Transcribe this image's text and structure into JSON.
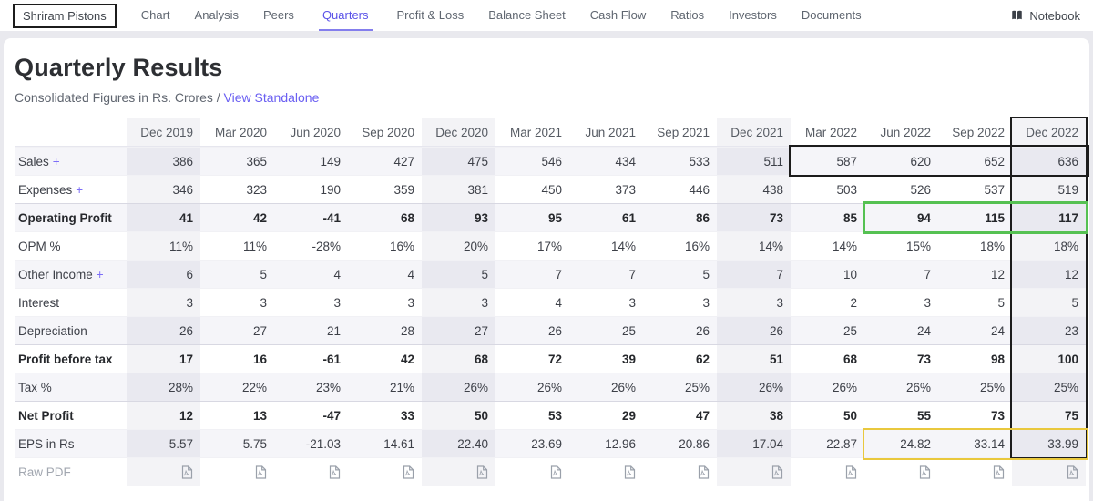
{
  "nav": {
    "company": "Shriram Pistons",
    "items": [
      "Chart",
      "Analysis",
      "Peers",
      "Quarters",
      "Profit & Loss",
      "Balance Sheet",
      "Cash Flow",
      "Ratios",
      "Investors",
      "Documents"
    ],
    "active": "Quarters",
    "notebook_label": "Notebook"
  },
  "header": {
    "title": "Quarterly Results",
    "subtitle": "Consolidated Figures in Rs. Crores /",
    "standalone_link": "View Standalone"
  },
  "table": {
    "columns": [
      "Dec 2019",
      "Mar 2020",
      "Jun 2020",
      "Sep 2020",
      "Dec 2020",
      "Mar 2021",
      "Jun 2021",
      "Sep 2021",
      "Dec 2021",
      "Mar 2022",
      "Jun 2022",
      "Sep 2022",
      "Dec 2022"
    ],
    "rows": [
      {
        "label": "Sales",
        "suffix": "+",
        "bold": false,
        "values": [
          "386",
          "365",
          "149",
          "427",
          "475",
          "546",
          "434",
          "533",
          "511",
          "587",
          "620",
          "652",
          "636"
        ]
      },
      {
        "label": "Expenses",
        "suffix": "+",
        "bold": false,
        "values": [
          "346",
          "323",
          "190",
          "359",
          "381",
          "450",
          "373",
          "446",
          "438",
          "503",
          "526",
          "537",
          "519"
        ]
      },
      {
        "label": "Operating Profit",
        "bold": true,
        "values": [
          "41",
          "42",
          "-41",
          "68",
          "93",
          "95",
          "61",
          "86",
          "73",
          "85",
          "94",
          "115",
          "117"
        ]
      },
      {
        "label": "OPM %",
        "bold": false,
        "values": [
          "11%",
          "11%",
          "-28%",
          "16%",
          "20%",
          "17%",
          "14%",
          "16%",
          "14%",
          "14%",
          "15%",
          "18%",
          "18%"
        ]
      },
      {
        "label": "Other Income",
        "suffix": "+",
        "bold": false,
        "values": [
          "6",
          "5",
          "4",
          "4",
          "5",
          "7",
          "7",
          "5",
          "7",
          "10",
          "7",
          "12",
          "12"
        ]
      },
      {
        "label": "Interest",
        "bold": false,
        "values": [
          "3",
          "3",
          "3",
          "3",
          "3",
          "4",
          "3",
          "3",
          "3",
          "2",
          "3",
          "5",
          "5"
        ]
      },
      {
        "label": "Depreciation",
        "bold": false,
        "values": [
          "26",
          "27",
          "21",
          "28",
          "27",
          "26",
          "25",
          "26",
          "26",
          "25",
          "24",
          "24",
          "23"
        ]
      },
      {
        "label": "Profit before tax",
        "bold": true,
        "values": [
          "17",
          "16",
          "-61",
          "42",
          "68",
          "72",
          "39",
          "62",
          "51",
          "68",
          "73",
          "98",
          "100"
        ]
      },
      {
        "label": "Tax %",
        "bold": false,
        "values": [
          "28%",
          "22%",
          "23%",
          "21%",
          "26%",
          "26%",
          "26%",
          "25%",
          "26%",
          "26%",
          "26%",
          "25%",
          "25%"
        ]
      },
      {
        "label": "Net Profit",
        "bold": true,
        "values": [
          "12",
          "13",
          "-47",
          "33",
          "50",
          "53",
          "29",
          "47",
          "38",
          "50",
          "55",
          "73",
          "75"
        ]
      },
      {
        "label": "EPS in Rs",
        "bold": false,
        "values": [
          "5.57",
          "5.75",
          "-21.03",
          "14.61",
          "22.40",
          "23.69",
          "12.96",
          "20.86",
          "17.04",
          "22.87",
          "24.82",
          "33.14",
          "33.99"
        ]
      },
      {
        "label": "Raw PDF",
        "bold": false,
        "pdf": true
      }
    ]
  },
  "annotations": {
    "company_box": "#1c1c1c",
    "dec_2022_column_box": "#1c1c1c",
    "sales_recent_quarters_box": "#1c1c1c",
    "operating_profit_recent_box": "#55c152",
    "eps_recent_box": "#e9c83d"
  }
}
